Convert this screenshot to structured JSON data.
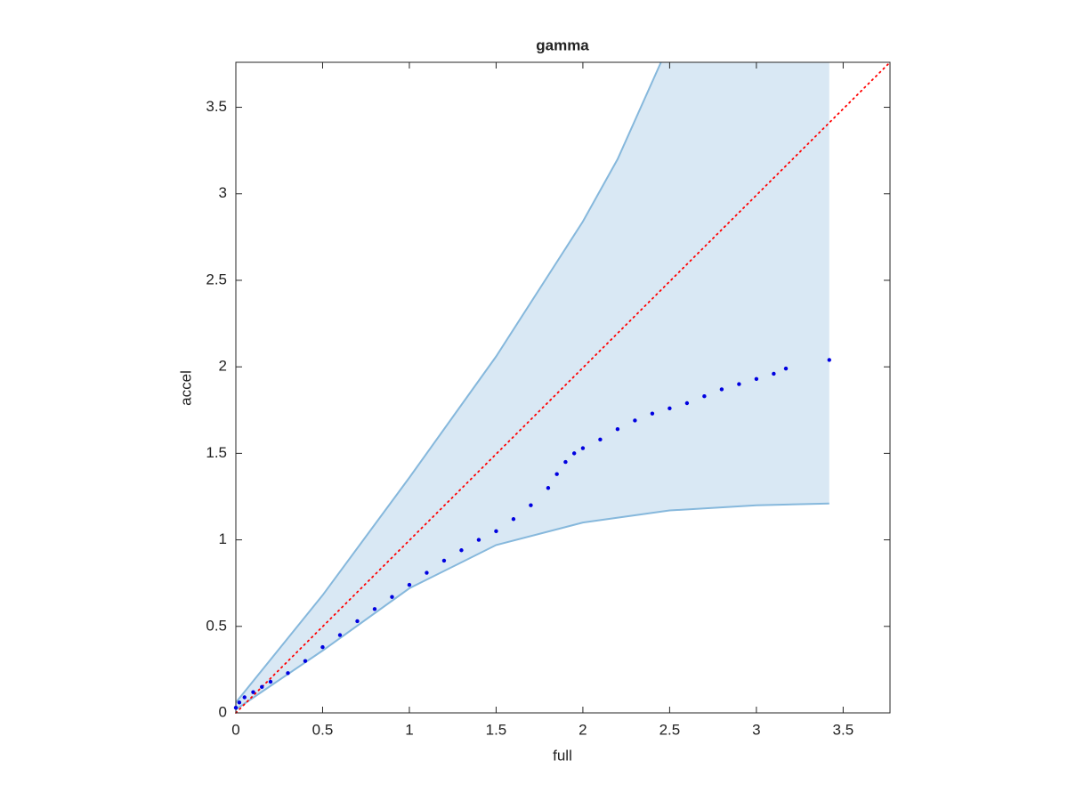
{
  "chart_data": {
    "type": "scatter",
    "title": "gamma",
    "x_label": "full",
    "y_label": "accel",
    "xlim": [
      0,
      3.77
    ],
    "ylim": [
      0,
      3.76
    ],
    "xticks": [
      0,
      0.5,
      1,
      1.5,
      2,
      2.5,
      3,
      3.5
    ],
    "yticks": [
      0,
      0.5,
      1,
      1.5,
      2,
      2.5,
      3,
      3.5
    ],
    "grid": false,
    "color": "#0000e0",
    "x": [
      0,
      0.02,
      0.05,
      0.1,
      0.15,
      0.2,
      0.3,
      0.4,
      0.5,
      0.6,
      0.7,
      0.8,
      0.9,
      1.0,
      1.1,
      1.2,
      1.3,
      1.4,
      1.5,
      1.6,
      1.7,
      1.8,
      1.85,
      1.9,
      1.95,
      2.0,
      2.1,
      2.2,
      2.3,
      2.4,
      2.5,
      2.6,
      2.7,
      2.8,
      2.9,
      3.0,
      3.1,
      3.17,
      3.42
    ],
    "y": [
      0.03,
      0.06,
      0.09,
      0.12,
      0.15,
      0.18,
      0.23,
      0.3,
      0.38,
      0.45,
      0.53,
      0.6,
      0.67,
      0.74,
      0.81,
      0.88,
      0.94,
      1.0,
      1.05,
      1.12,
      1.2,
      1.3,
      1.38,
      1.45,
      1.5,
      1.53,
      1.58,
      1.64,
      1.69,
      1.73,
      1.76,
      1.79,
      1.83,
      1.87,
      1.9,
      1.93,
      1.96,
      1.99,
      2.04
    ],
    "band": {
      "fill": "#d9e8f4",
      "edge_color": "#86b8dc",
      "upper": {
        "x": [
          0,
          0.5,
          1,
          1.5,
          2,
          2.2,
          2.45
        ],
        "y": [
          0.06,
          0.68,
          1.36,
          2.06,
          2.84,
          3.2,
          3.76
        ]
      },
      "lower": {
        "x": [
          0,
          0.5,
          1,
          1.5,
          2,
          2.5,
          3,
          3.42
        ],
        "y": [
          0.02,
          0.36,
          0.72,
          0.97,
          1.1,
          1.17,
          1.2,
          1.21
        ]
      }
    },
    "reference_line": {
      "x": [
        0,
        3.77
      ],
      "y": [
        0,
        3.76
      ],
      "color": "#ff0000"
    }
  }
}
